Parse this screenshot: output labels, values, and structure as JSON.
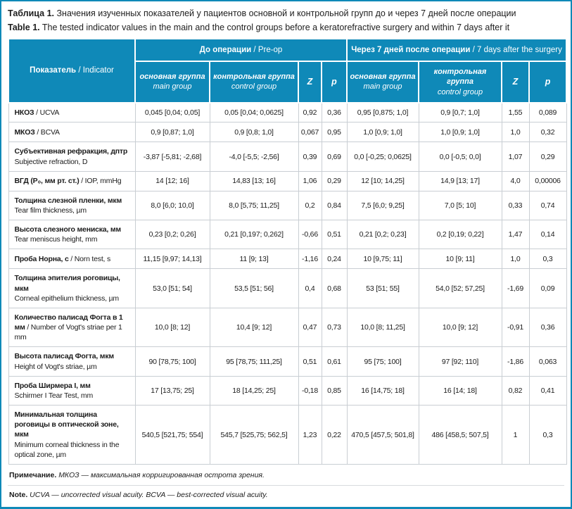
{
  "layout": {
    "separator": " / "
  },
  "colors": {
    "header_bg": "#0f89b8",
    "frame": "#0f89b8",
    "grid": "#c9ced3",
    "text": "#1b1b1b",
    "header_text": "#ffffff"
  },
  "title": {
    "ru_label": "Таблица 1.",
    "ru_text": "Значения изученных показателей у пациентов основной и контрольной групп до и через 7 дней после операции",
    "en_label": "Table 1.",
    "en_text": "The tested indicator values in the main and the control groups before a keratorefractive surgery and within 7 days after it"
  },
  "header": {
    "indicator_ru": "Показатель",
    "indicator_en": "Indicator",
    "groups": [
      {
        "ru": "До операции",
        "en": "Pre-op"
      },
      {
        "ru": "Через 7 дней после операции",
        "en": "7 days after the surgery"
      }
    ],
    "sub": {
      "main_ru": "основная группа",
      "main_en": "main group",
      "control_ru": "контрольная группа",
      "control_en": "control group",
      "z": "Z",
      "p": "p"
    }
  },
  "rows": [
    {
      "label_ru": "НКОЗ",
      "label_en": "UCVA",
      "inline": true,
      "values": [
        "0,045 [0,04; 0,05]",
        "0,05 [0,04; 0,0625]",
        "0,92",
        "0,36",
        "0,95 [0,875; 1,0]",
        "0,9 [0,7; 1,0]",
        "1,55",
        "0,089"
      ]
    },
    {
      "label_ru": "МКОЗ",
      "label_en": "BCVA",
      "inline": true,
      "values": [
        "0,9 [0,87; 1,0]",
        "0,9 [0,8; 1,0]",
        "0,067",
        "0,95",
        "1,0 [0,9; 1,0]",
        "1,0 [0,9; 1,0]",
        "1,0",
        "0,32"
      ]
    },
    {
      "label_ru": "Субъективная рефракция, дптр",
      "label_en": "Subjective refraction, D",
      "inline": false,
      "values": [
        "-3,87 [-5,81; -2,68]",
        "-4,0 [-5,5; -2,56]",
        "0,39",
        "0,69",
        "0,0 [-0,25; 0,0625]",
        "0,0 [-0,5; 0,0]",
        "1,07",
        "0,29"
      ]
    },
    {
      "label_ru": "ВГД (P₀, мм рт. ст.)",
      "label_en": "IOP, mmHg",
      "inline": true,
      "values": [
        "14 [12; 16]",
        "14,83 [13; 16]",
        "1,06",
        "0,29",
        "12 [10; 14,25]",
        "14,9 [13; 17]",
        "4,0",
        "0,00006"
      ]
    },
    {
      "label_ru": "Толщина слезной пленки, мкм",
      "label_en": "Tear film thickness, µm",
      "inline": false,
      "values": [
        "8,0 [6,0; 10,0]",
        "8,0 [5,75; 11,25]",
        "0,2",
        "0,84",
        "7,5 [6,0; 9,25]",
        "7,0 [5; 10]",
        "0,33",
        "0,74"
      ]
    },
    {
      "label_ru": "Высота слезного мениска, мм",
      "label_en": "Tear meniscus height, mm",
      "inline": false,
      "values": [
        "0,23 [0,2; 0,26]",
        "0,21 [0,197; 0,262]",
        "-0,66",
        "0,51",
        "0,21 [0,2; 0,23]",
        "0,2 [0,19; 0,22]",
        "1,47",
        "0,14"
      ]
    },
    {
      "label_ru": "Проба Норна, с",
      "label_en": "Norn test, s",
      "inline": true,
      "values": [
        "11,15 [9,97; 14,13]",
        "11 [9; 13]",
        "-1,16",
        "0,24",
        "10 [9,75; 11]",
        "10 [9; 11]",
        "1,0",
        "0,3"
      ]
    },
    {
      "label_ru": "Толщина эпителия роговицы, мкм",
      "label_en": "Corneal epithelium thickness, µm",
      "inline": false,
      "values": [
        "53,0 [51; 54]",
        "53,5 [51; 56]",
        "0,4",
        "0,68",
        "53 [51; 55]",
        "54,0 [52; 57,25]",
        "-1,69",
        "0,09"
      ]
    },
    {
      "label_ru": "Количество палисад Фогта в 1 мм",
      "label_en": "Number of Vogt's striae per 1 mm",
      "inline": true,
      "values": [
        "10,0 [8; 12]",
        "10,4 [9; 12]",
        "0,47",
        "0,73",
        "10,0 [8; 11,25]",
        "10,0 [9; 12]",
        "-0,91",
        "0,36"
      ]
    },
    {
      "label_ru": "Высота палисад Фогта, мкм",
      "label_en": "Height of Vogt's striae, µm",
      "inline": false,
      "values": [
        "90 [78,75; 100]",
        "95 [78,75; 111,25]",
        "0,51",
        "0,61",
        "95 [75; 100]",
        "97 [92; 110]",
        "-1,86",
        "0,063"
      ]
    },
    {
      "label_ru": "Проба Ширмера I, мм",
      "label_en": "Schirmer I Tear Test, mm",
      "inline": false,
      "values": [
        "17 [13,75; 25]",
        "18 [14,25; 25]",
        "-0,18",
        "0,85",
        "16 [14,75; 18]",
        "16 [14; 18]",
        "0,82",
        "0,41"
      ]
    },
    {
      "label_ru": "Минимальная толщина роговицы в оптической зоне, мкм",
      "label_en": "Minimum corneal thickness in the optical zone, µm",
      "inline": false,
      "values": [
        "540,5 [521,75; 554]",
        "545,7 [525,75; 562,5]",
        "1,23",
        "0,22",
        "470,5 [457,5; 501,8]",
        "486 [458,5; 507,5]",
        "1",
        "0,3"
      ]
    }
  ],
  "notes": {
    "ru_label": "Примечание.",
    "ru_text": "МКОЗ — максимальная корригированная острота зрения.",
    "en_label": "Note.",
    "en_text": "UCVA — uncorrected visual acuity. BCVA — best-corrected visual acuity."
  }
}
